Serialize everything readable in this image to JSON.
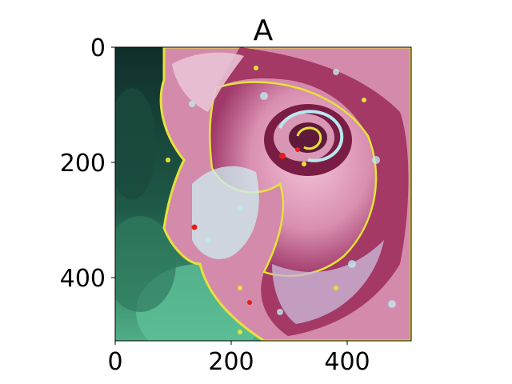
{
  "figure": {
    "title": "A",
    "x_ticks": [
      "0",
      "200",
      "400"
    ],
    "y_ticks": [
      "0",
      "200",
      "400"
    ]
  },
  "image": {
    "subject": "rose-flower",
    "colors": {
      "petal": "#d98fb0",
      "petal_highlight": "#bfe8ec",
      "petal_shadow": "#8c1f4a",
      "edge_yellow": "#e6e23a",
      "leaf_dark": "#123a32",
      "leaf_green": "#3a8a6a",
      "leaf_light": "#7fd6b0",
      "red_spot": "#e0201c"
    }
  }
}
